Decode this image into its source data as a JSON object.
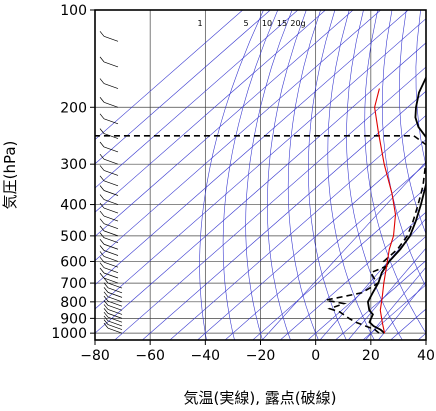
{
  "chart_data": {
    "type": "line",
    "title": "",
    "xlabel": "気温(実線), 露点(破線)",
    "ylabel": "気圧(hPa)",
    "xlim": [
      -80,
      40
    ],
    "ylim": [
      1050,
      100
    ],
    "y_scale": "log",
    "x_ticks": [
      -80,
      -60,
      -40,
      -20,
      0,
      20,
      40
    ],
    "x_tick_labels": [
      "−80",
      "−60",
      "−40",
      "−20",
      "0",
      "20",
      "40"
    ],
    "y_ticks": [
      100,
      200,
      300,
      400,
      500,
      600,
      700,
      800,
      900,
      1000
    ],
    "y_tick_labels": [
      "100",
      "200",
      "300",
      "400",
      "500",
      "600",
      "700",
      "800",
      "900",
      "1000"
    ],
    "grid": true,
    "mixing_ratio_labels": [
      "1",
      "5",
      "10",
      "15",
      "20g"
    ],
    "series": [
      {
        "style": "solid",
        "color": "#000000",
        "points": [
          [
            25,
            1000
          ],
          [
            22,
            975
          ],
          [
            18,
            950
          ],
          [
            15,
            925
          ],
          [
            14,
            900
          ],
          [
            13,
            875
          ],
          [
            10,
            850
          ],
          [
            6,
            800
          ],
          [
            4,
            750
          ],
          [
            2,
            700
          ],
          [
            -1,
            650
          ],
          [
            -3,
            600
          ],
          [
            -4,
            550
          ],
          [
            -6,
            500
          ],
          [
            -10,
            450
          ],
          [
            -15,
            400
          ],
          [
            -21,
            350
          ],
          [
            -28,
            300
          ],
          [
            -34,
            270
          ],
          [
            -40,
            250
          ],
          [
            -48,
            230
          ],
          [
            -53,
            215
          ],
          [
            -57,
            200
          ],
          [
            -62,
            180
          ],
          [
            -66,
            160
          ],
          [
            -68,
            150
          ],
          [
            -70,
            140
          ],
          [
            -70,
            130
          ],
          [
            -72,
            120
          ],
          [
            -71,
            110
          ],
          [
            -69,
            100
          ]
        ]
      },
      {
        "style": "dashed",
        "color": "#000000",
        "points": [
          [
            23,
            1000
          ],
          [
            20,
            975
          ],
          [
            10,
            925
          ],
          [
            6,
            900
          ],
          [
            0,
            860
          ],
          [
            -5,
            840
          ],
          [
            -2,
            810
          ],
          [
            -10,
            790
          ],
          [
            -5,
            770
          ],
          [
            0,
            750
          ],
          [
            2,
            700
          ],
          [
            -1,
            680
          ],
          [
            -5,
            650
          ],
          [
            -2,
            620
          ],
          [
            -5,
            600
          ],
          [
            -5,
            550
          ],
          [
            -7,
            500
          ],
          [
            -11,
            450
          ],
          [
            -16,
            400
          ],
          [
            -22,
            350
          ],
          [
            -30,
            300
          ],
          [
            -36,
            265
          ],
          [
            -46,
            245
          ],
          [
            -80,
            245
          ]
        ]
      },
      {
        "style": "solid",
        "color": "#e00000",
        "points": [
          [
            25,
            1000
          ],
          [
            20,
            930
          ],
          [
            14,
            850
          ],
          [
            9,
            770
          ],
          [
            4,
            700
          ],
          [
            -2,
            620
          ],
          [
            -8,
            550
          ],
          [
            -12,
            500
          ],
          [
            -20,
            430
          ],
          [
            -30,
            370
          ],
          [
            -45,
            300
          ],
          [
            -60,
            240
          ],
          [
            -72,
            200
          ],
          [
            -78,
            175
          ]
        ]
      }
    ]
  }
}
